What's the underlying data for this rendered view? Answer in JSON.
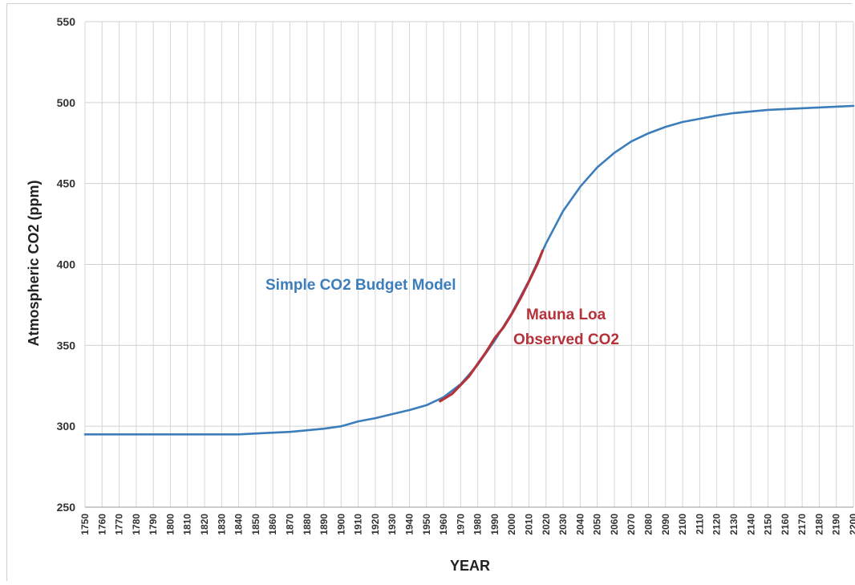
{
  "chart_data": {
    "type": "line",
    "title": "",
    "xlabel": "YEAR",
    "ylabel": "Atmospheric CO2 (ppm)",
    "xlim": [
      1750,
      2200
    ],
    "ylim": [
      250,
      550
    ],
    "yticks": [
      250,
      300,
      350,
      400,
      450,
      500,
      550
    ],
    "xticks": [
      1750,
      1760,
      1770,
      1780,
      1790,
      1800,
      1810,
      1820,
      1830,
      1840,
      1850,
      1860,
      1870,
      1880,
      1890,
      1900,
      1910,
      1920,
      1930,
      1940,
      1950,
      1960,
      1970,
      1980,
      1990,
      2000,
      2010,
      2020,
      2030,
      2040,
      2050,
      2060,
      2070,
      2080,
      2090,
      2100,
      2110,
      2120,
      2130,
      2140,
      2150,
      2160,
      2170,
      2180,
      2190,
      2200
    ],
    "grid": true,
    "series": [
      {
        "name": "Simple CO2 Budget Model",
        "color": "#3c7dbb",
        "x": [
          1750,
          1760,
          1770,
          1780,
          1790,
          1800,
          1810,
          1820,
          1830,
          1840,
          1850,
          1860,
          1870,
          1880,
          1890,
          1900,
          1910,
          1920,
          1930,
          1940,
          1950,
          1960,
          1970,
          1980,
          1990,
          2000,
          2010,
          2020,
          2030,
          2040,
          2050,
          2060,
          2070,
          2080,
          2090,
          2100,
          2110,
          2120,
          2130,
          2140,
          2150,
          2160,
          2170,
          2180,
          2190,
          2200
        ],
        "y": [
          295,
          295,
          295,
          295,
          295,
          295,
          295,
          295,
          295,
          295,
          295.5,
          296,
          296.5,
          297.5,
          298.5,
          300,
          303,
          305,
          307.5,
          310,
          313,
          318,
          326,
          338,
          353,
          370,
          390,
          413,
          433,
          448,
          460,
          469,
          476,
          481,
          485,
          488,
          490,
          492,
          493.5,
          494.5,
          495.5,
          496,
          496.5,
          497,
          497.5,
          498
        ]
      },
      {
        "name": "Mauna Loa Observed CO2",
        "color": "#b5323a",
        "x": [
          1958,
          1965,
          1970,
          1975,
          1980,
          1985,
          1990,
          1995,
          2000,
          2005,
          2010,
          2015,
          2018
        ],
        "y": [
          315.5,
          320,
          325.5,
          331,
          338.5,
          346,
          354.5,
          361,
          369.5,
          379,
          389.5,
          400.5,
          408.5
        ]
      }
    ],
    "annotations": [
      {
        "text": "Simple CO2 Budget Model",
        "color": "#3c7dbb"
      },
      {
        "text": "Mauna Loa",
        "color": "#b5323a"
      },
      {
        "text": "Observed CO2",
        "color": "#b5323a"
      }
    ]
  }
}
